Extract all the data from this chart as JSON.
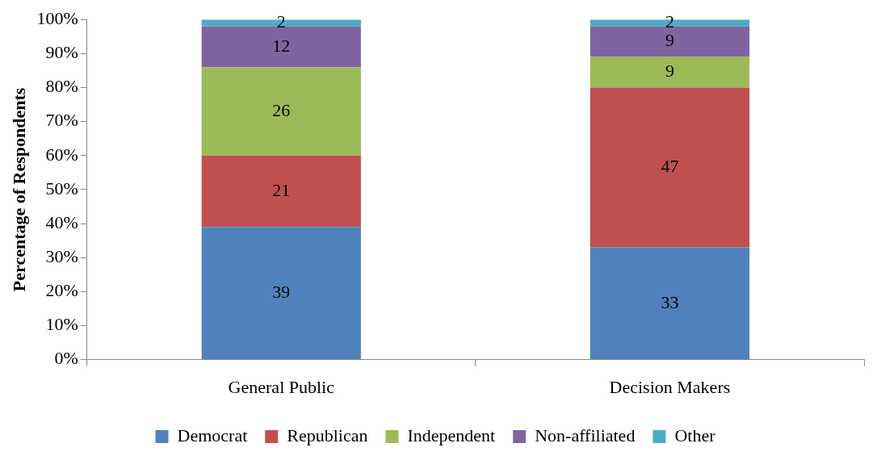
{
  "chart_data": {
    "type": "bar",
    "stacked": true,
    "ylabel": "Percentage of Respondents",
    "categories": [
      "General Public",
      "Decision Makers"
    ],
    "series": [
      {
        "name": "Democrat",
        "color": "#4f81bd",
        "values": [
          39,
          33
        ]
      },
      {
        "name": "Republican",
        "color": "#c0504d",
        "values": [
          21,
          47
        ]
      },
      {
        "name": "Independent",
        "color": "#9bbb59",
        "values": [
          26,
          9
        ]
      },
      {
        "name": "Non-affiliated",
        "color": "#8064a2",
        "values": [
          12,
          9
        ]
      },
      {
        "name": "Other",
        "color": "#4bacc6",
        "values": [
          2,
          2
        ]
      }
    ],
    "ylim": [
      0,
      100
    ],
    "yticks": [
      {
        "value": 0,
        "label": "0%"
      },
      {
        "value": 10,
        "label": "10%"
      },
      {
        "value": 20,
        "label": "20%"
      },
      {
        "value": 30,
        "label": "30%"
      },
      {
        "value": 40,
        "label": "40%"
      },
      {
        "value": 50,
        "label": "50%"
      },
      {
        "value": 60,
        "label": "60%"
      },
      {
        "value": 70,
        "label": "70%"
      },
      {
        "value": 80,
        "label": "80%"
      },
      {
        "value": 90,
        "label": "90%"
      },
      {
        "value": 100,
        "label": "100%"
      }
    ],
    "grid": false,
    "legend": "bottom",
    "data_labels": true
  }
}
